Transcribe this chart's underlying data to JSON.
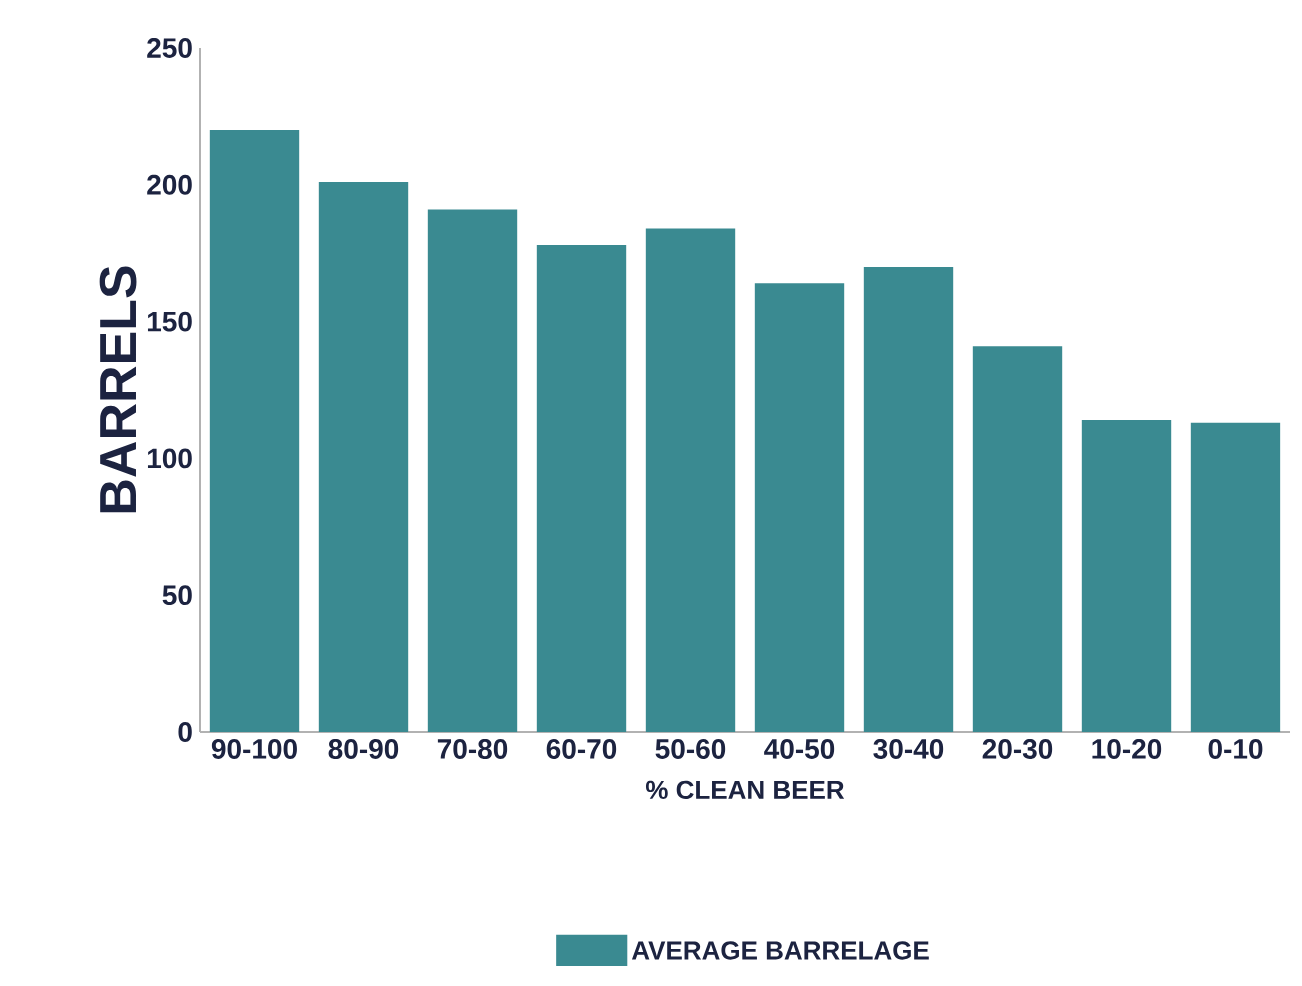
{
  "chart_data": {
    "type": "bar",
    "ylabel": "BARRELS",
    "xlabel": "% CLEAN BEER",
    "categories": [
      "90-100",
      "80-90",
      "70-80",
      "60-70",
      "50-60",
      "40-50",
      "30-40",
      "20-30",
      "10-20",
      "0-10"
    ],
    "series": [
      {
        "name": "AVERAGE BARRELAGE",
        "color": "#3a8a91",
        "values": [
          220,
          201,
          191,
          178,
          184,
          164,
          170,
          141,
          114,
          113
        ]
      }
    ],
    "ylim": [
      0,
      250
    ],
    "yticks": [
      0,
      50,
      100,
      150,
      200,
      250
    ],
    "grid": false,
    "legend": "bottom"
  }
}
